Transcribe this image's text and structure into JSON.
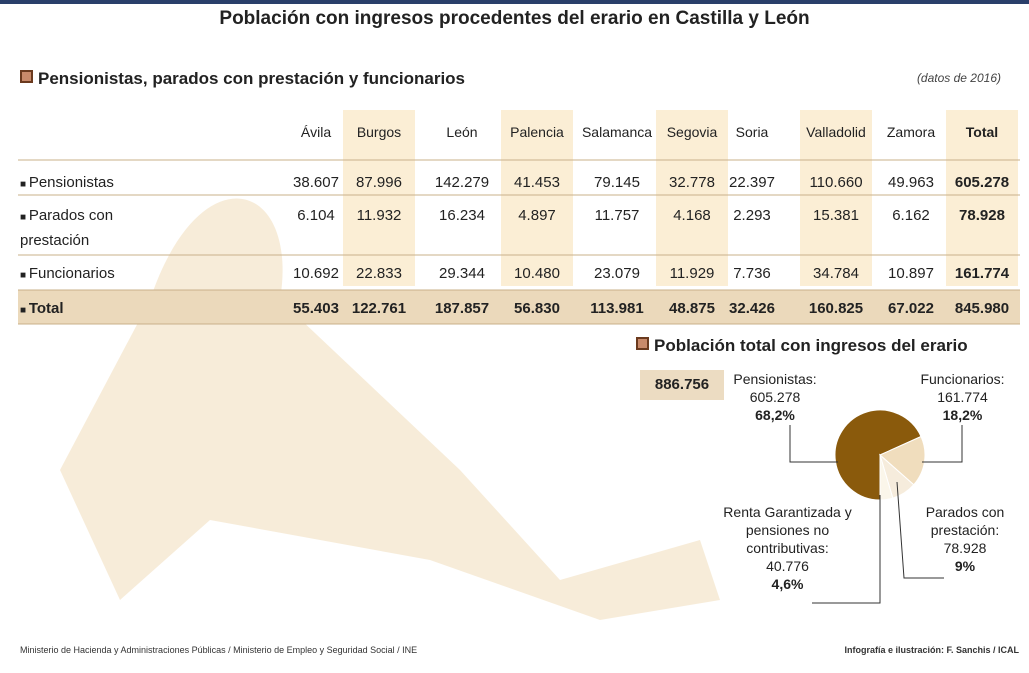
{
  "header": {
    "title": "Población con ingresos procedentes del erario en Castilla y León"
  },
  "table": {
    "title": "Pensionistas, parados con prestación y funcionarios",
    "note": "(datos de 2016)",
    "columns": [
      "Ávila",
      "Burgos",
      "León",
      "Palencia",
      "Salamanca",
      "Segovia",
      "Soria",
      "Valladolid",
      "Zamora",
      "Total"
    ],
    "rows": [
      [
        "Pensionistas",
        "38.607",
        "87.996",
        "142.279",
        "41.453",
        "79.145",
        "32.778",
        "22.397",
        "110.660",
        "49.963",
        "605.278"
      ],
      [
        "Parados con prestación",
        "6.104",
        "11.932",
        "16.234",
        "4.897",
        "11.757",
        "4.168",
        "2.293",
        "15.381",
        "6.162",
        "78.928"
      ],
      [
        "Funcionarios",
        "10.692",
        "22.833",
        "29.344",
        "10.480",
        "23.079",
        "11.929",
        "7.736",
        "34.784",
        "10.897",
        "161.774"
      ],
      [
        "Total",
        "55.403",
        "122.761",
        "187.857",
        "56.830",
        "113.981",
        "48.875",
        "32.426",
        "160.825",
        "67.022",
        "845.980"
      ]
    ]
  },
  "chart_data": {
    "type": "pie",
    "title": "Población total con ingresos del erario",
    "total": {
      "value": 886756,
      "label": "886.756"
    },
    "categories": [
      "Pensionistas:",
      "Funcionarios:",
      "Parados con prestación:",
      "Renta Garantizada y pensiones no contributivas:"
    ],
    "values": [
      605278,
      161774,
      78928,
      40776
    ],
    "value_labels": [
      "605.278",
      "161.774",
      "78.928",
      "40.776"
    ],
    "percents": [
      68.2,
      18.2,
      9,
      4.6
    ],
    "percent_labels": [
      "68,2%",
      "18,2%",
      "9%",
      "4,6%"
    ],
    "colors": [
      "#8a5a0c",
      "#f0ddbd",
      "#f6ecdc",
      "#fbf6ea"
    ]
  },
  "footer": {
    "source": "Ministerio de Hacienda y Administraciones Públicas / Ministerio de Empleo y Seguridad Social / INE",
    "credit": "Infografía e ilustración: F. Sanchis / ICAL"
  }
}
